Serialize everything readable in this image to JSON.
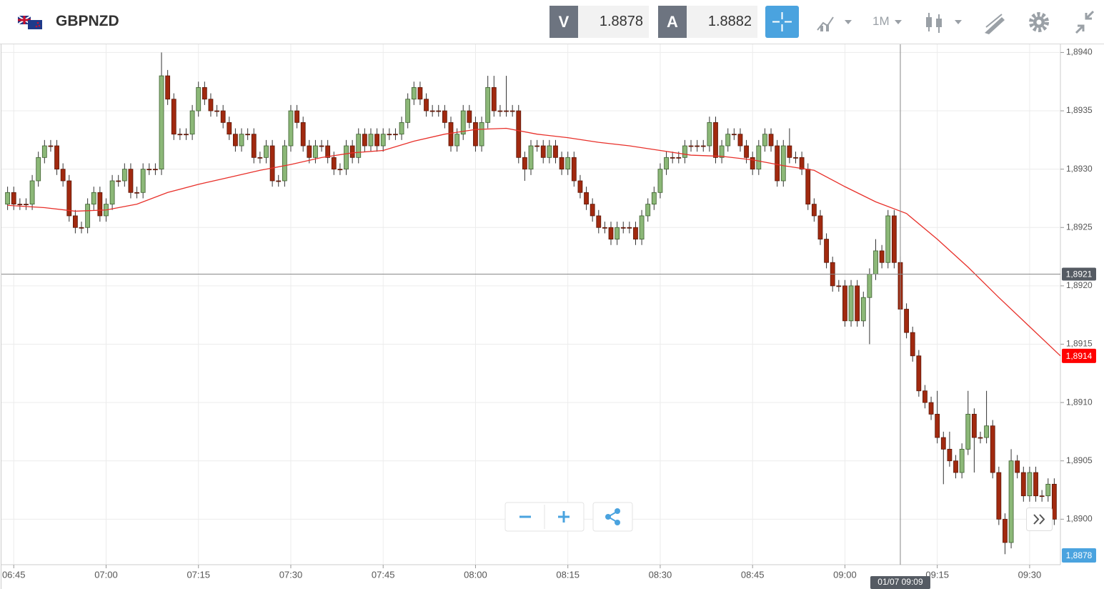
{
  "toolbar": {
    "symbol": "GBPNZD",
    "bid_label": "V",
    "bid": 1.8878,
    "ask_label": "A",
    "ask": 1.8882,
    "timeframe": "1M"
  },
  "chart_data": {
    "type": "candlestick",
    "up_color": "#8cb878",
    "down_color": "#a1290f",
    "xlim": [
      "06:43",
      "09:35"
    ],
    "xticks": [
      "06:45",
      "07:00",
      "07:15",
      "07:30",
      "07:45",
      "08:00",
      "08:15",
      "08:30",
      "08:45",
      "09:00",
      "09:15",
      "09:30"
    ],
    "ylim": [
      1.88961,
      1.89407
    ],
    "yticks": [
      {
        "value": 1.894,
        "label": "1,8940"
      },
      {
        "value": 1.8935,
        "label": "1,8935"
      },
      {
        "value": 1.893,
        "label": "1,8930"
      },
      {
        "value": 1.8925,
        "label": "1,8925"
      },
      {
        "value": 1.892,
        "label": "1,8920"
      },
      {
        "value": 1.8915,
        "label": "1,8915"
      },
      {
        "value": 1.891,
        "label": "1,8910"
      },
      {
        "value": 1.8905,
        "label": "1,8905"
      },
      {
        "value": 1.89,
        "label": "1,8900"
      }
    ],
    "grid": true,
    "x": [
      "06:44",
      "06:45",
      "06:46",
      "06:47",
      "06:48",
      "06:49",
      "06:50",
      "06:51",
      "06:52",
      "06:53",
      "06:54",
      "06:55",
      "06:56",
      "06:57",
      "06:58",
      "06:59",
      "07:00",
      "07:01",
      "07:02",
      "07:03",
      "07:04",
      "07:05",
      "07:06",
      "07:07",
      "07:08",
      "07:09",
      "07:10",
      "07:11",
      "07:12",
      "07:13",
      "07:14",
      "07:15",
      "07:16",
      "07:17",
      "07:18",
      "07:19",
      "07:20",
      "07:21",
      "07:22",
      "07:23",
      "07:24",
      "07:25",
      "07:26",
      "07:27",
      "07:28",
      "07:29",
      "07:30",
      "07:31",
      "07:32",
      "07:33",
      "07:34",
      "07:35",
      "07:36",
      "07:37",
      "07:38",
      "07:39",
      "07:40",
      "07:41",
      "07:42",
      "07:43",
      "07:44",
      "07:45",
      "07:46",
      "07:47",
      "07:48",
      "07:49",
      "07:50",
      "07:51",
      "07:52",
      "07:53",
      "07:54",
      "07:55",
      "07:56",
      "07:57",
      "07:58",
      "07:59",
      "08:00",
      "08:01",
      "08:02",
      "08:03",
      "08:04",
      "08:05",
      "08:06",
      "08:07",
      "08:08",
      "08:09",
      "08:10",
      "08:11",
      "08:12",
      "08:13",
      "08:14",
      "08:15",
      "08:16",
      "08:17",
      "08:18",
      "08:19",
      "08:20",
      "08:21",
      "08:22",
      "08:23",
      "08:24",
      "08:25",
      "08:26",
      "08:27",
      "08:28",
      "08:29",
      "08:30",
      "08:31",
      "08:32",
      "08:33",
      "08:34",
      "08:35",
      "08:36",
      "08:37",
      "08:38",
      "08:39",
      "08:40",
      "08:41",
      "08:42",
      "08:43",
      "08:44",
      "08:45",
      "08:46",
      "08:47",
      "08:48",
      "08:49",
      "08:50",
      "08:51",
      "08:52",
      "08:53",
      "08:54",
      "08:55",
      "08:56",
      "08:57",
      "08:58",
      "08:59",
      "09:00",
      "09:01",
      "09:02",
      "09:03",
      "09:04",
      "09:05",
      "09:06",
      "09:07",
      "09:08",
      "09:09",
      "09:10",
      "09:11",
      "09:12",
      "09:13",
      "09:14",
      "09:15",
      "09:16",
      "09:17",
      "09:18",
      "09:19",
      "09:20",
      "09:21",
      "09:22",
      "09:23",
      "09:24",
      "09:25",
      "09:26",
      "09:27",
      "09:28",
      "09:29",
      "09:30",
      "09:31",
      "09:32",
      "09:33",
      "09:34"
    ],
    "open": [
      1.8927,
      1.8928,
      1.8927,
      1.8927,
      1.8927,
      1.8929,
      1.8931,
      1.8932,
      1.8932,
      1.893,
      1.8929,
      1.8926,
      1.8925,
      1.8925,
      1.8927,
      1.8928,
      1.8926,
      1.8927,
      1.8929,
      1.8929,
      1.893,
      1.8928,
      1.8928,
      1.893,
      1.893,
      1.893,
      1.8938,
      1.8936,
      1.8933,
      1.8933,
      1.8933,
      1.8935,
      1.8937,
      1.8936,
      1.8935,
      1.8935,
      1.8934,
      1.8933,
      1.8932,
      1.8933,
      1.8933,
      1.8931,
      1.8931,
      1.8932,
      1.8929,
      1.8929,
      1.8932,
      1.8935,
      1.8934,
      1.8932,
      1.8931,
      1.8932,
      1.8932,
      1.8931,
      1.893,
      1.893,
      1.8932,
      1.8931,
      1.8933,
      1.8932,
      1.8933,
      1.8932,
      1.8933,
      1.8933,
      1.8933,
      1.8934,
      1.8936,
      1.8937,
      1.8936,
      1.8935,
      1.8935,
      1.8935,
      1.8934,
      1.8932,
      1.8933,
      1.8935,
      1.8934,
      1.8932,
      1.8934,
      1.8937,
      1.8935,
      1.8935,
      1.8935,
      1.8935,
      1.8931,
      1.893,
      1.8932,
      1.8932,
      1.8931,
      1.8932,
      1.8931,
      1.893,
      1.8931,
      1.8929,
      1.8928,
      1.8927,
      1.8926,
      1.8925,
      1.8925,
      1.8924,
      1.8925,
      1.8925,
      1.8925,
      1.8924,
      1.8926,
      1.8927,
      1.8928,
      1.893,
      1.8931,
      1.8931,
      1.8931,
      1.8932,
      1.8932,
      1.8932,
      1.8932,
      1.8934,
      1.8931,
      1.8932,
      1.8933,
      1.8933,
      1.8932,
      1.8931,
      1.893,
      1.8932,
      1.8933,
      1.8932,
      1.8929,
      1.8932,
      1.8931,
      1.8931,
      1.893,
      1.8927,
      1.8926,
      1.8924,
      1.8922,
      1.892,
      1.892,
      1.8917,
      1.892,
      1.8917,
      1.8919,
      1.8921,
      1.8923,
      1.8922,
      1.8926,
      1.8922,
      1.8918,
      1.8916,
      1.8914,
      1.8911,
      1.891,
      1.8909,
      1.8907,
      1.8906,
      1.8905,
      1.8904,
      1.8906,
      1.8909,
      1.8907,
      1.8907,
      1.8908,
      1.8904,
      1.89,
      1.8898,
      1.8905,
      1.8904,
      1.8902,
      1.8904,
      1.8902,
      1.8902,
      1.8903
    ],
    "high": [
      1.89285,
      1.89285,
      1.89275,
      1.89275,
      1.89295,
      1.89315,
      1.89325,
      1.89325,
      1.89325,
      1.89305,
      1.89295,
      1.89265,
      1.89255,
      1.89275,
      1.89285,
      1.89285,
      1.89275,
      1.89295,
      1.89295,
      1.89305,
      1.89305,
      1.89285,
      1.89305,
      1.89305,
      1.89305,
      1.894,
      1.89385,
      1.89365,
      1.89335,
      1.89335,
      1.89355,
      1.89375,
      1.89375,
      1.89365,
      1.89355,
      1.89355,
      1.89345,
      1.89335,
      1.89335,
      1.89335,
      1.89335,
      1.89315,
      1.89325,
      1.89325,
      1.89295,
      1.89325,
      1.89355,
      1.89355,
      1.89345,
      1.89325,
      1.89325,
      1.89325,
      1.89325,
      1.89315,
      1.89305,
      1.89325,
      1.89325,
      1.89335,
      1.89335,
      1.89335,
      1.89335,
      1.89335,
      1.89335,
      1.89335,
      1.89345,
      1.89365,
      1.89375,
      1.89375,
      1.89365,
      1.89355,
      1.89355,
      1.89355,
      1.89345,
      1.89335,
      1.89355,
      1.89355,
      1.89345,
      1.89345,
      1.8938,
      1.8938,
      1.89355,
      1.8938,
      1.89355,
      1.89355,
      1.89315,
      1.89325,
      1.89325,
      1.89325,
      1.89325,
      1.89325,
      1.89315,
      1.89315,
      1.89315,
      1.89295,
      1.89285,
      1.89275,
      1.89265,
      1.89255,
      1.89255,
      1.89255,
      1.89255,
      1.89255,
      1.89255,
      1.89265,
      1.89275,
      1.89285,
      1.89305,
      1.89315,
      1.89315,
      1.89315,
      1.89325,
      1.89325,
      1.89325,
      1.89325,
      1.89345,
      1.89345,
      1.89325,
      1.89335,
      1.89335,
      1.89335,
      1.89325,
      1.89315,
      1.89325,
      1.89335,
      1.89335,
      1.89325,
      1.89325,
      1.89335,
      1.89315,
      1.89315,
      1.89305,
      1.89275,
      1.89265,
      1.89245,
      1.89225,
      1.89205,
      1.89205,
      1.89205,
      1.89205,
      1.89195,
      1.89215,
      1.8924,
      1.89235,
      1.89265,
      1.89265,
      1.89225,
      1.89185,
      1.89165,
      1.89145,
      1.89115,
      1.89105,
      1.8911,
      1.89075,
      1.89075,
      1.89055,
      1.89065,
      1.8911,
      1.89095,
      1.89075,
      1.8911,
      1.89085,
      1.89045,
      1.89005,
      1.8906,
      1.89055,
      1.89045,
      1.89045,
      1.89045,
      1.89025,
      1.89035,
      1.89035
    ],
    "low": [
      1.89265,
      1.89265,
      1.89265,
      1.89265,
      1.89265,
      1.89285,
      1.89305,
      1.89315,
      1.89295,
      1.89285,
      1.89255,
      1.89245,
      1.89245,
      1.89245,
      1.89265,
      1.89255,
      1.89255,
      1.89265,
      1.89285,
      1.89285,
      1.89275,
      1.89275,
      1.89275,
      1.89295,
      1.89295,
      1.89295,
      1.89355,
      1.89325,
      1.89325,
      1.89325,
      1.89325,
      1.89345,
      1.89355,
      1.89345,
      1.89345,
      1.89335,
      1.89325,
      1.89315,
      1.89315,
      1.89325,
      1.89305,
      1.89305,
      1.89305,
      1.89285,
      1.89285,
      1.89285,
      1.89315,
      1.89335,
      1.89315,
      1.89305,
      1.89305,
      1.89315,
      1.89305,
      1.89295,
      1.89295,
      1.89295,
      1.89305,
      1.89305,
      1.89315,
      1.89315,
      1.89315,
      1.89315,
      1.89325,
      1.89325,
      1.89325,
      1.89335,
      1.89355,
      1.89355,
      1.89345,
      1.89345,
      1.89345,
      1.89335,
      1.89315,
      1.89315,
      1.89325,
      1.89335,
      1.89315,
      1.89315,
      1.89335,
      1.89345,
      1.89345,
      1.89345,
      1.89345,
      1.89305,
      1.8929,
      1.89295,
      1.89315,
      1.89305,
      1.89305,
      1.89305,
      1.89295,
      1.89295,
      1.89285,
      1.89275,
      1.89265,
      1.89255,
      1.89245,
      1.89245,
      1.89235,
      1.89235,
      1.89245,
      1.89245,
      1.89235,
      1.89235,
      1.89255,
      1.89265,
      1.89275,
      1.89295,
      1.89305,
      1.89305,
      1.89305,
      1.89315,
      1.89315,
      1.89315,
      1.89315,
      1.89305,
      1.89305,
      1.89315,
      1.89325,
      1.89315,
      1.89305,
      1.89295,
      1.89295,
      1.89315,
      1.89315,
      1.89285,
      1.89285,
      1.89305,
      1.89305,
      1.89295,
      1.89265,
      1.89255,
      1.89235,
      1.89215,
      1.89195,
      1.89195,
      1.89165,
      1.89165,
      1.89165,
      1.89165,
      1.8915,
      1.89205,
      1.89215,
      1.89215,
      1.89215,
      1.89175,
      1.89155,
      1.89135,
      1.89105,
      1.89095,
      1.89085,
      1.89065,
      1.8903,
      1.89045,
      1.89035,
      1.89035,
      1.89055,
      1.8904,
      1.89065,
      1.89065,
      1.89035,
      1.88995,
      1.8897,
      1.88975,
      1.89035,
      1.89015,
      1.89015,
      1.89015,
      1.89015,
      1.89015,
      1.88995
    ],
    "close": [
      1.8928,
      1.8927,
      1.8927,
      1.8927,
      1.8929,
      1.8931,
      1.8932,
      1.8932,
      1.893,
      1.8929,
      1.8926,
      1.8925,
      1.8925,
      1.8927,
      1.8928,
      1.8926,
      1.8927,
      1.8929,
      1.8929,
      1.893,
      1.8928,
      1.8928,
      1.893,
      1.893,
      1.893,
      1.8938,
      1.8936,
      1.8933,
      1.8933,
      1.8933,
      1.8935,
      1.8937,
      1.8936,
      1.8935,
      1.8935,
      1.8934,
      1.8933,
      1.8932,
      1.8933,
      1.8933,
      1.8931,
      1.8931,
      1.8932,
      1.8929,
      1.8929,
      1.8932,
      1.8935,
      1.8934,
      1.8932,
      1.8931,
      1.8932,
      1.8932,
      1.8931,
      1.893,
      1.893,
      1.8932,
      1.8931,
      1.8933,
      1.8932,
      1.8933,
      1.8932,
      1.8933,
      1.8933,
      1.8933,
      1.8934,
      1.8936,
      1.8937,
      1.8936,
      1.8935,
      1.8935,
      1.8935,
      1.8934,
      1.8932,
      1.8933,
      1.8935,
      1.8934,
      1.8932,
      1.8934,
      1.8937,
      1.8935,
      1.8935,
      1.8935,
      1.8935,
      1.8931,
      1.893,
      1.8932,
      1.8932,
      1.8931,
      1.8932,
      1.8931,
      1.893,
      1.8931,
      1.8929,
      1.8928,
      1.8927,
      1.8926,
      1.8925,
      1.8925,
      1.8924,
      1.8925,
      1.8925,
      1.8925,
      1.8924,
      1.8926,
      1.8927,
      1.8928,
      1.893,
      1.8931,
      1.8931,
      1.8931,
      1.8932,
      1.8932,
      1.8932,
      1.8932,
      1.8934,
      1.8931,
      1.8932,
      1.8933,
      1.8933,
      1.8932,
      1.8931,
      1.893,
      1.8932,
      1.8933,
      1.8932,
      1.8929,
      1.8932,
      1.8931,
      1.8931,
      1.893,
      1.8927,
      1.8926,
      1.8924,
      1.8922,
      1.892,
      1.892,
      1.8917,
      1.892,
      1.8917,
      1.8919,
      1.8921,
      1.8923,
      1.8922,
      1.8926,
      1.8922,
      1.8918,
      1.8916,
      1.8914,
      1.8911,
      1.891,
      1.8909,
      1.8907,
      1.8906,
      1.8905,
      1.8904,
      1.8906,
      1.8909,
      1.8907,
      1.8907,
      1.8908,
      1.8904,
      1.89,
      1.8898,
      1.8905,
      1.8904,
      1.8902,
      1.8904,
      1.8902,
      1.8902,
      1.8903,
      1.89
    ],
    "overlay": {
      "type": "line",
      "color": "#e8302a",
      "x": [
        "06:44",
        "06:50",
        "06:55",
        "07:00",
        "07:05",
        "07:10",
        "07:15",
        "07:20",
        "07:25",
        "07:30",
        "07:35",
        "07:40",
        "07:45",
        "07:50",
        "07:55",
        "08:00",
        "08:05",
        "08:10",
        "08:15",
        "08:20",
        "08:25",
        "08:30",
        "08:35",
        "08:40",
        "08:45",
        "08:50",
        "08:55",
        "09:00",
        "09:05",
        "09:10",
        "09:15",
        "09:20",
        "09:25",
        "09:30",
        "09:35"
      ],
      "values": [
        1.89269,
        1.89267,
        1.89264,
        1.89265,
        1.8927,
        1.8928,
        1.89287,
        1.89293,
        1.89299,
        1.89304,
        1.8931,
        1.89314,
        1.89316,
        1.89324,
        1.8933,
        1.89334,
        1.89335,
        1.8933,
        1.89327,
        1.89323,
        1.8932,
        1.89316,
        1.89312,
        1.89311,
        1.89308,
        1.89303,
        1.89299,
        1.89285,
        1.89272,
        1.89262,
        1.8924,
        1.89216,
        1.8919,
        1.89165,
        1.8914
      ],
      "end_label": "1,8914"
    },
    "crosshair": {
      "x": "09:09",
      "x_label": "01/07 09:09",
      "y": 1.8921,
      "y_label": "1,8921"
    },
    "bid_marker": {
      "value": 1.8878,
      "label": "1,8878"
    }
  }
}
